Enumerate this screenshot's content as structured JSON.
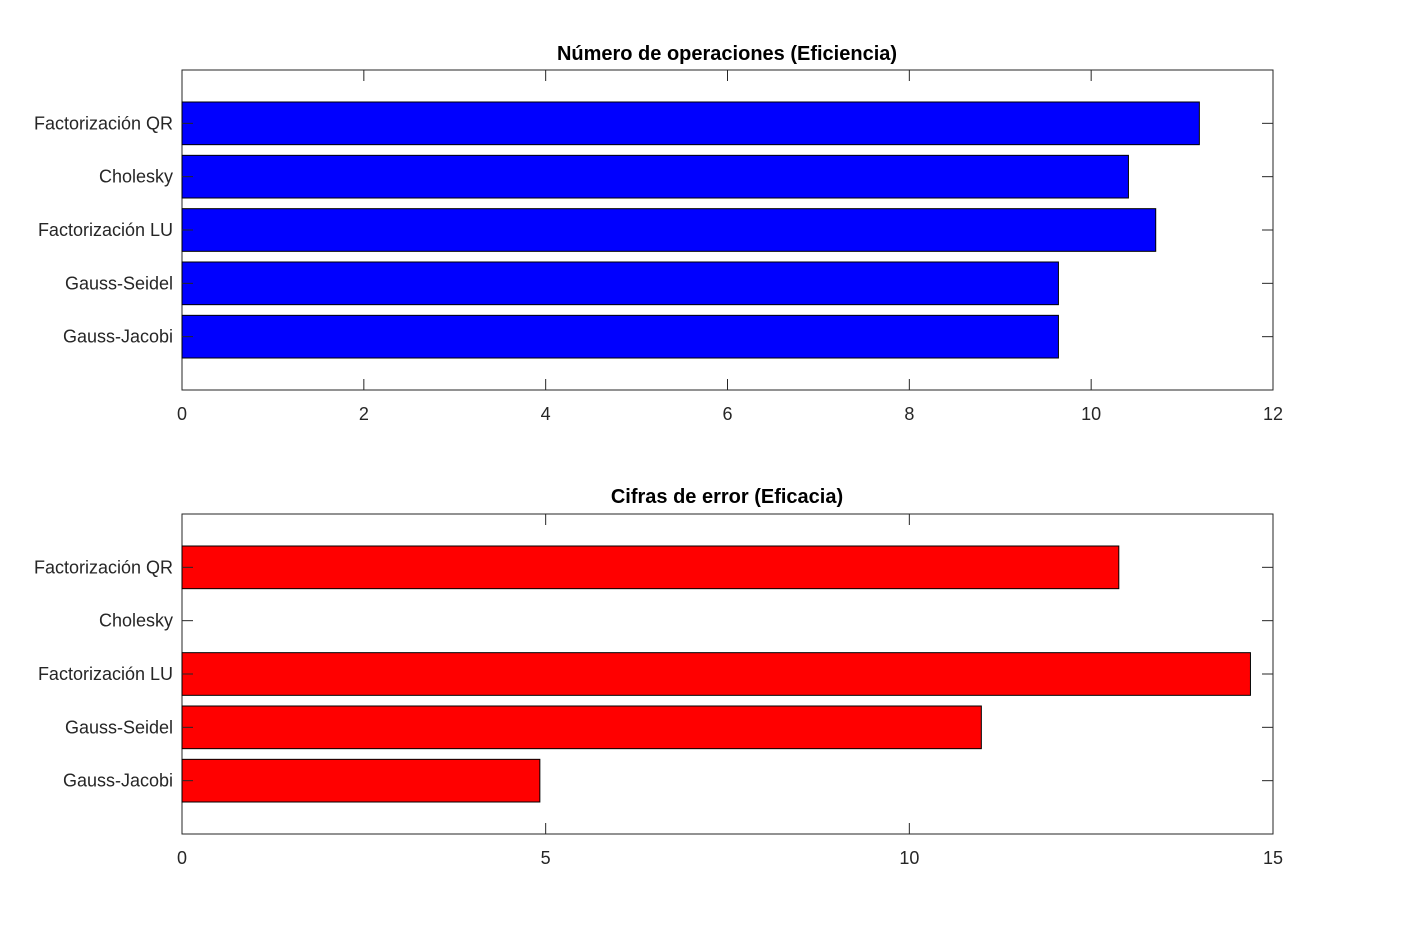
{
  "chart_data": [
    {
      "type": "bar",
      "orientation": "horizontal",
      "title": "Número de operaciones (Eficiencia)",
      "categories": [
        "Gauss-Jacobi",
        "Gauss-Seidel",
        "Factorización LU",
        "Cholesky",
        "Factorización QR"
      ],
      "values": [
        9.64,
        9.64,
        10.71,
        10.41,
        11.19
      ],
      "xlim": [
        0,
        12
      ],
      "xticks": [
        0,
        2,
        4,
        6,
        8,
        10,
        12
      ],
      "xlabel": "",
      "ylabel": "",
      "bar_color": "#0000ff",
      "grid": false
    },
    {
      "type": "bar",
      "orientation": "horizontal",
      "title": "Cifras de error (Eficacia)",
      "categories": [
        "Gauss-Jacobi",
        "Gauss-Seidel",
        "Factorización LU",
        "Cholesky",
        "Factorización QR"
      ],
      "values": [
        4.92,
        10.99,
        14.69,
        0,
        12.88
      ],
      "xlim": [
        0,
        15
      ],
      "xticks": [
        0,
        5,
        10,
        15
      ],
      "xlabel": "",
      "ylabel": "",
      "bar_color": "#ff0000",
      "grid": false
    }
  ]
}
